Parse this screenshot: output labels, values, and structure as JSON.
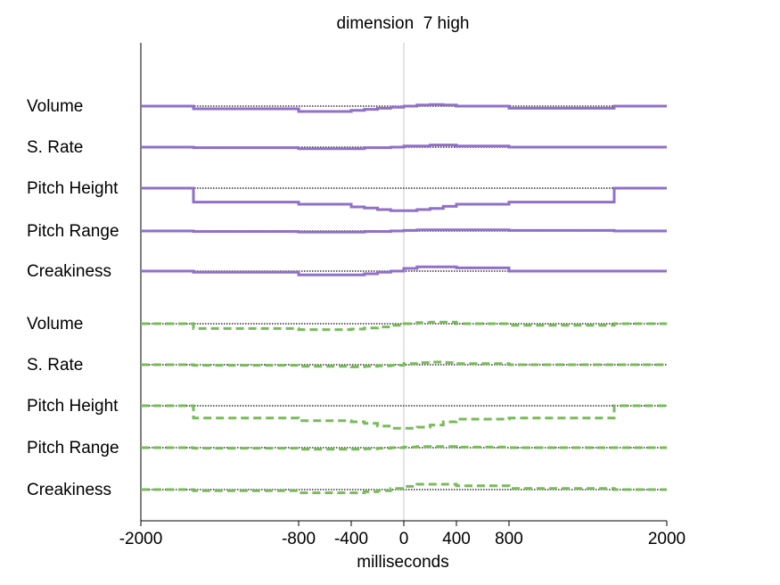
{
  "chart_data": {
    "type": "line",
    "title": "dimension  7 high",
    "xlabel": "milliseconds",
    "ylabel": "",
    "xlim": [
      -2000,
      2000
    ],
    "xticks": [
      -2000,
      -800,
      -400,
      0,
      400,
      800,
      2000
    ],
    "grid": false,
    "legend": "none",
    "segment_boundaries": [
      -2000,
      -1600,
      -800,
      -400,
      -300,
      -200,
      -100,
      0,
      100,
      200,
      300,
      400,
      800,
      1600,
      2000
    ],
    "groups": [
      {
        "color": "#9070c8",
        "line_style": "solid",
        "tracks": [
          {
            "label": "Volume",
            "values": [
              0.0,
              0.05,
              0.1,
              0.08,
              0.06,
              0.04,
              0.02,
              0.0,
              -0.02,
              -0.03,
              -0.02,
              0.0,
              0.04,
              0.0
            ]
          },
          {
            "label": "S. Rate",
            "values": [
              0.0,
              0.01,
              0.03,
              0.03,
              0.01,
              0.01,
              0.0,
              -0.02,
              -0.02,
              -0.04,
              -0.04,
              -0.02,
              0.0,
              0.0
            ]
          },
          {
            "label": "Pitch Height",
            "values": [
              0.0,
              0.26,
              0.3,
              0.35,
              0.37,
              0.4,
              0.42,
              0.42,
              0.4,
              0.38,
              0.34,
              0.3,
              0.26,
              0.0
            ]
          },
          {
            "label": "Pitch Range",
            "values": [
              0.0,
              0.01,
              0.02,
              0.02,
              0.01,
              0.01,
              0.0,
              -0.01,
              -0.02,
              -0.02,
              -0.02,
              -0.02,
              -0.01,
              0.0
            ]
          },
          {
            "label": "Creakiness",
            "values": [
              0.0,
              0.02,
              0.07,
              0.07,
              0.05,
              0.02,
              0.0,
              -0.05,
              -0.08,
              -0.08,
              -0.08,
              -0.06,
              0.0,
              0.0
            ]
          }
        ]
      },
      {
        "color": "#78bc5a",
        "line_style": "dashed",
        "tracks": [
          {
            "label": "Volume",
            "values": [
              0.0,
              0.09,
              0.11,
              0.1,
              0.08,
              0.06,
              0.03,
              0.0,
              -0.02,
              -0.03,
              -0.03,
              0.0,
              0.03,
              0.0
            ]
          },
          {
            "label": "S. Rate",
            "values": [
              0.0,
              0.01,
              0.03,
              0.04,
              0.03,
              0.02,
              0.01,
              -0.02,
              -0.04,
              -0.05,
              -0.04,
              -0.02,
              0.0,
              0.0
            ]
          },
          {
            "label": "Pitch Height",
            "values": [
              0.0,
              0.23,
              0.28,
              0.3,
              0.33,
              0.38,
              0.42,
              0.42,
              0.4,
              0.36,
              0.3,
              0.25,
              0.23,
              0.0
            ]
          },
          {
            "label": "Pitch Range",
            "values": [
              0.0,
              0.01,
              0.03,
              0.03,
              0.02,
              0.01,
              0.0,
              -0.01,
              -0.02,
              -0.02,
              -0.02,
              -0.01,
              0.0,
              0.0
            ]
          },
          {
            "label": "Creakiness",
            "values": [
              0.0,
              0.02,
              0.06,
              0.06,
              0.04,
              0.02,
              -0.02,
              -0.06,
              -0.1,
              -0.1,
              -0.1,
              -0.07,
              -0.02,
              0.0
            ]
          }
        ]
      }
    ]
  }
}
